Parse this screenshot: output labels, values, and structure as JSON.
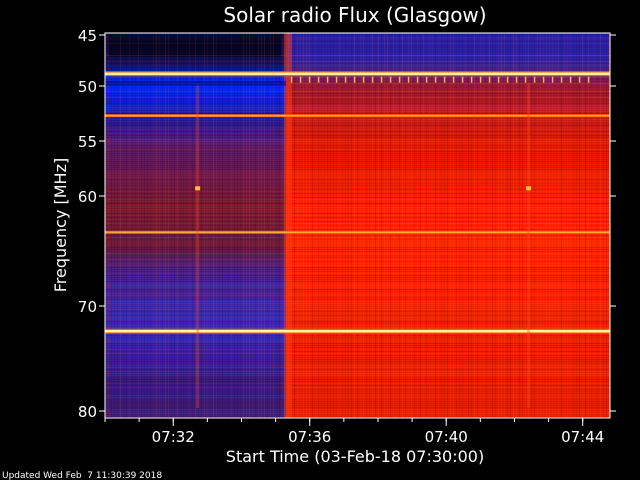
{
  "chart_data": {
    "type": "heatmap",
    "title": "Solar radio Flux (Glasgow)",
    "ylabel": "Frequency [MHz]",
    "xlabel": "Start Time (03-Feb-18 07:30:00)",
    "x_ticks": [
      "07:32",
      "07:36",
      "07:40",
      "07:44"
    ],
    "x_tick_minutes": [
      2,
      6,
      10,
      14
    ],
    "xlim_minutes": [
      0,
      14.8
    ],
    "y_ticks": [
      45,
      50,
      55,
      60,
      70,
      80
    ],
    "ylim": [
      45,
      80
    ],
    "y_inverted": true,
    "colors": {
      "background": "#000000",
      "low": "#0a0a30",
      "mid": "#3a1aa0",
      "high": "#ff2a00",
      "peak": "#ffee66"
    },
    "transition_minute": 5.3,
    "bright_bands_mhz": [
      48.8,
      52.7,
      63.3,
      72.4
    ],
    "spike_columns_minutes": [
      2.7,
      12.4
    ]
  },
  "footer": "Updated Wed Feb  7 11:30:39 2018"
}
